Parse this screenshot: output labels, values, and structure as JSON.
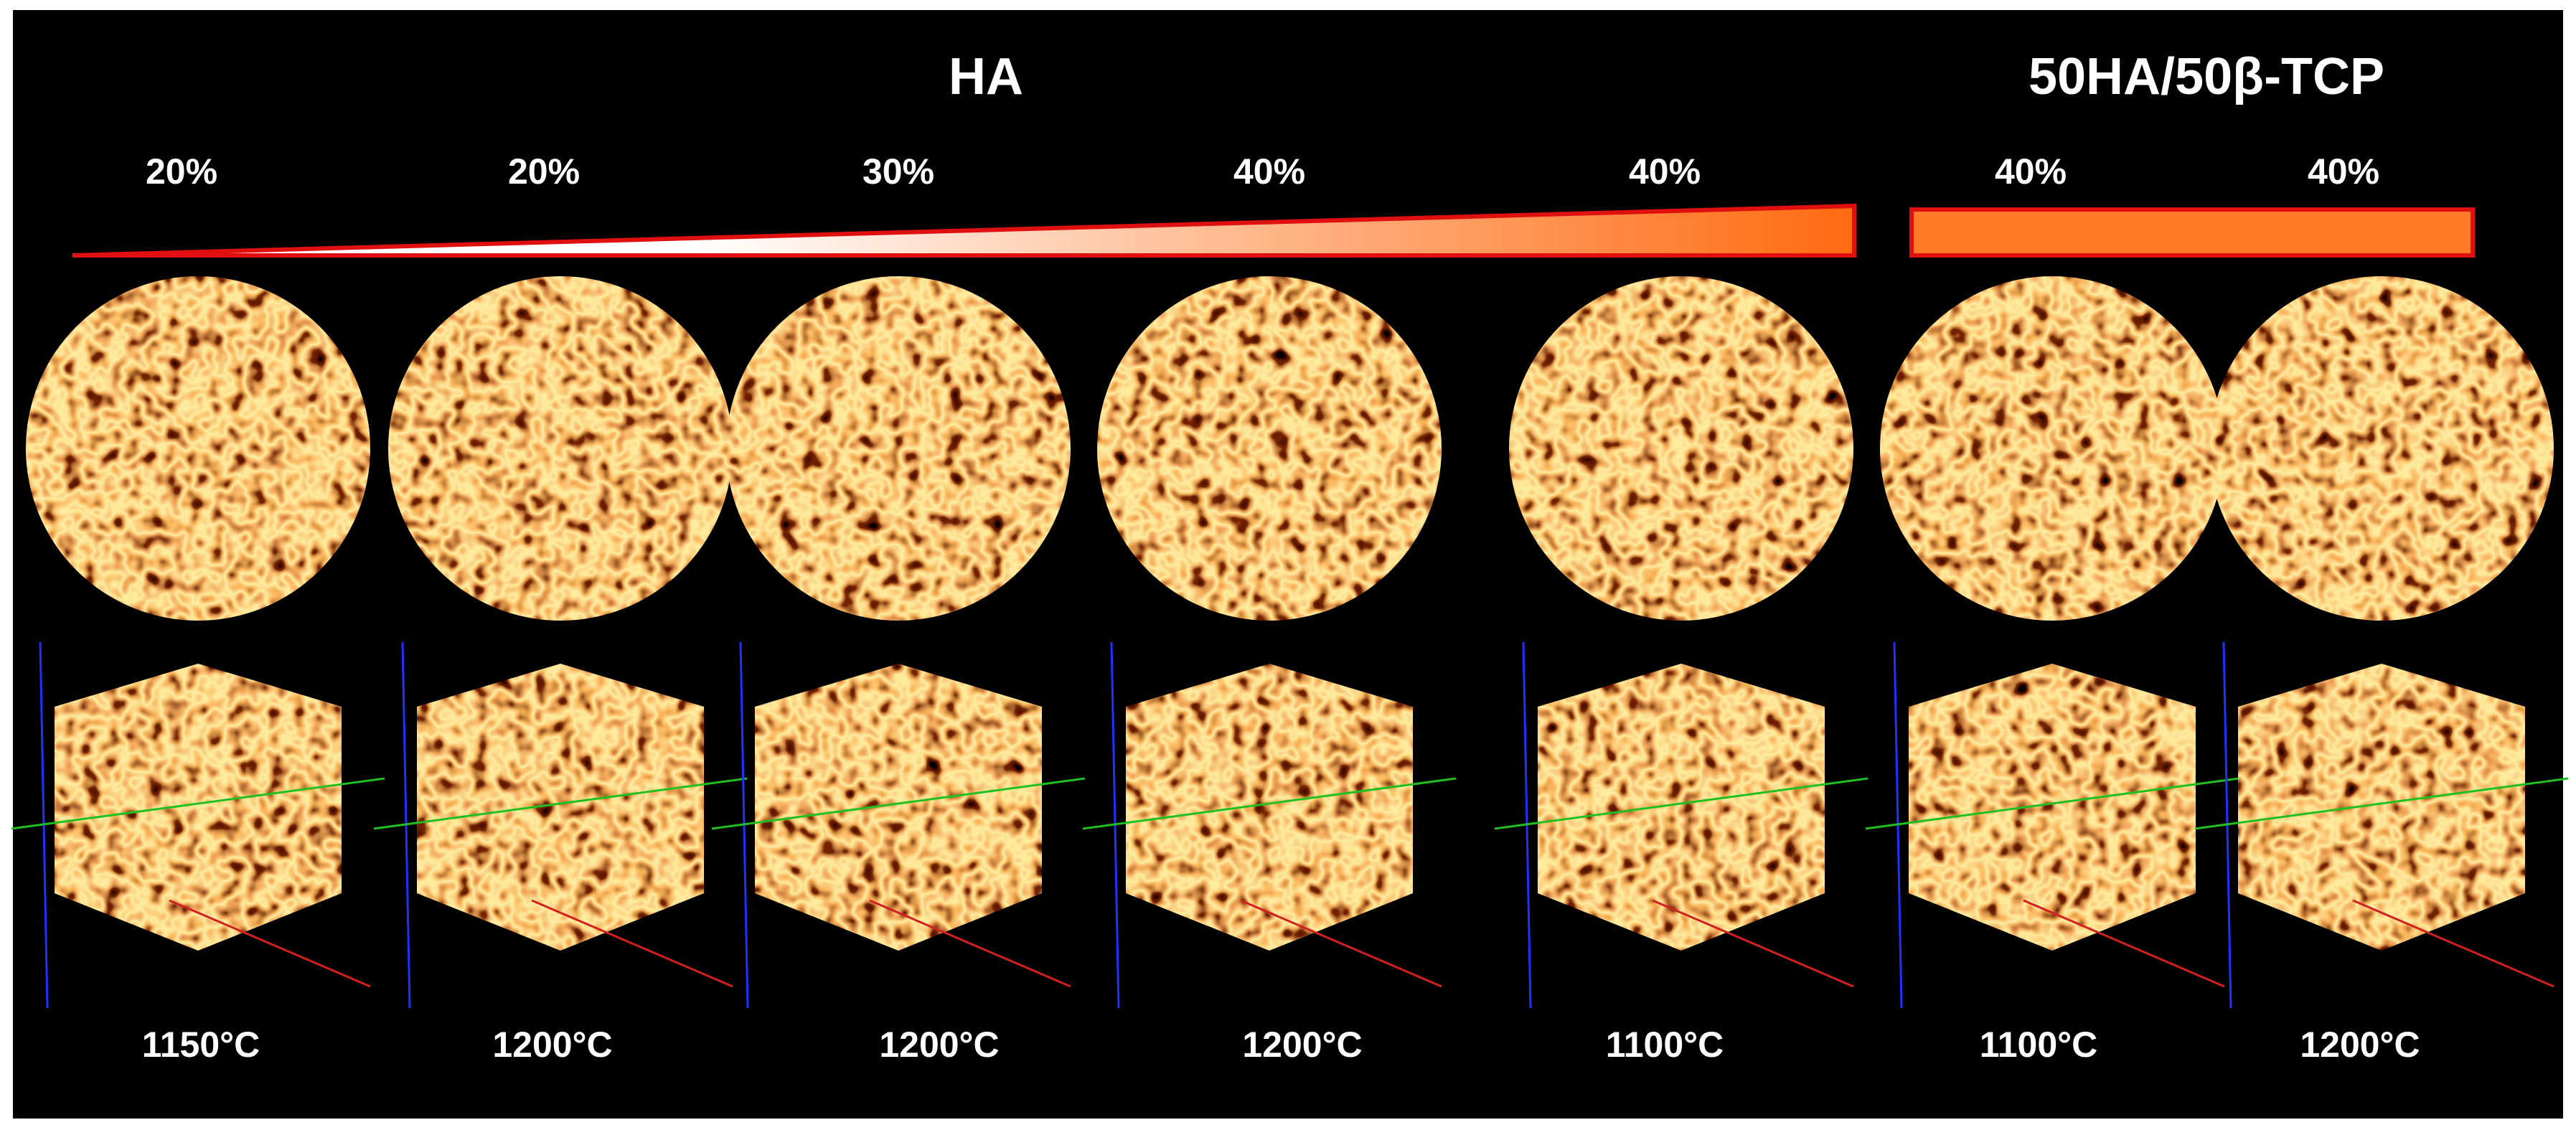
{
  "header": {
    "groups": [
      "HA",
      "50HA/50β-TCP"
    ]
  },
  "columns": [
    {
      "percent": "20%",
      "temperature": "1150°C"
    },
    {
      "percent": "20%",
      "temperature": "1200°C"
    },
    {
      "percent": "30%",
      "temperature": "1200°C"
    },
    {
      "percent": "40%",
      "temperature": "1200°C"
    },
    {
      "percent": "40%",
      "temperature": "1100°C"
    },
    {
      "percent": "40%",
      "temperature": "1100°C"
    },
    {
      "percent": "40%",
      "temperature": "1200°C"
    }
  ]
}
